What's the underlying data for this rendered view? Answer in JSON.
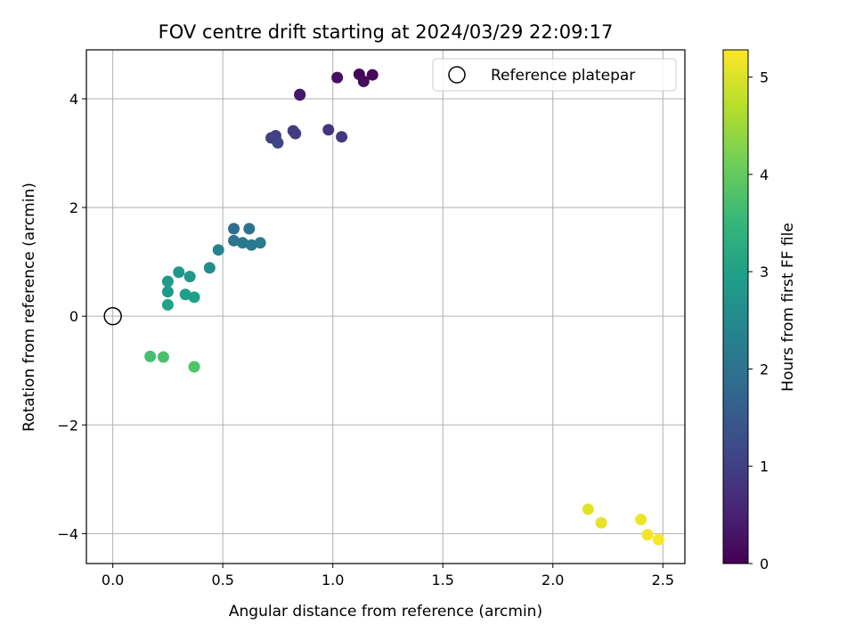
{
  "chart_data": {
    "type": "scatter",
    "title": "FOV centre drift starting at 2024/03/29 22:09:17",
    "xlabel": "Angular distance from reference (arcmin)",
    "ylabel": "Rotation from reference (arcmin)",
    "xlim": [
      -0.12,
      2.6
    ],
    "ylim": [
      -4.55,
      4.9
    ],
    "xticks": [
      0.0,
      0.5,
      1.0,
      1.5,
      2.0,
      2.5
    ],
    "xtick_labels": [
      "0.0",
      "0.5",
      "1.0",
      "1.5",
      "2.0",
      "2.5"
    ],
    "yticks": [
      -4,
      -2,
      0,
      2,
      4
    ],
    "ytick_labels": [
      "−4",
      "−2",
      "0",
      "2",
      "4"
    ],
    "grid": true,
    "legend": {
      "placement": "top-right",
      "entries": [
        {
          "label": "Reference platepar",
          "marker": "open-circle"
        }
      ]
    },
    "reference_point": {
      "x": 0.0,
      "y": 0.0
    },
    "colorbar": {
      "label": "Hours from first FF file",
      "range": [
        0,
        5.28
      ],
      "ticks": [
        0,
        1,
        2,
        3,
        4,
        5
      ],
      "tick_labels": [
        "0",
        "1",
        "2",
        "3",
        "4",
        "5"
      ],
      "colormap": "viridis",
      "stops": [
        "#440154",
        "#482878",
        "#3e4989",
        "#31688e",
        "#26828e",
        "#1f9e89",
        "#35b779",
        "#6ece58",
        "#b5de2b",
        "#fde725"
      ]
    },
    "points": [
      {
        "x": 1.12,
        "y": 4.45,
        "c": 0.05
      },
      {
        "x": 1.18,
        "y": 4.44,
        "c": 0.1
      },
      {
        "x": 1.14,
        "y": 4.32,
        "c": 0.15
      },
      {
        "x": 1.02,
        "y": 4.39,
        "c": 0.2
      },
      {
        "x": 0.85,
        "y": 4.08,
        "c": 0.3
      },
      {
        "x": 0.85,
        "y": 4.07,
        "c": 0.35
      },
      {
        "x": 0.98,
        "y": 3.43,
        "c": 0.8
      },
      {
        "x": 1.04,
        "y": 3.3,
        "c": 0.85
      },
      {
        "x": 0.82,
        "y": 3.41,
        "c": 0.9
      },
      {
        "x": 0.83,
        "y": 3.36,
        "c": 0.95
      },
      {
        "x": 0.72,
        "y": 3.28,
        "c": 1.0
      },
      {
        "x": 0.74,
        "y": 3.32,
        "c": 1.05
      },
      {
        "x": 0.75,
        "y": 3.19,
        "c": 1.1
      },
      {
        "x": 0.55,
        "y": 1.61,
        "c": 1.9
      },
      {
        "x": 0.62,
        "y": 1.61,
        "c": 2.0
      },
      {
        "x": 0.55,
        "y": 1.39,
        "c": 2.05
      },
      {
        "x": 0.59,
        "y": 1.35,
        "c": 2.1
      },
      {
        "x": 0.63,
        "y": 1.31,
        "c": 2.15
      },
      {
        "x": 0.67,
        "y": 1.35,
        "c": 2.2
      },
      {
        "x": 0.48,
        "y": 1.22,
        "c": 2.4
      },
      {
        "x": 0.44,
        "y": 0.89,
        "c": 2.55
      },
      {
        "x": 0.3,
        "y": 0.81,
        "c": 2.75
      },
      {
        "x": 0.35,
        "y": 0.73,
        "c": 2.8
      },
      {
        "x": 0.25,
        "y": 0.64,
        "c": 2.85
      },
      {
        "x": 0.25,
        "y": 0.45,
        "c": 2.9
      },
      {
        "x": 0.33,
        "y": 0.4,
        "c": 2.95
      },
      {
        "x": 0.37,
        "y": 0.35,
        "c": 3.0
      },
      {
        "x": 0.25,
        "y": 0.21,
        "c": 3.05
      },
      {
        "x": 0.17,
        "y": -0.74,
        "c": 3.7
      },
      {
        "x": 0.23,
        "y": -0.75,
        "c": 3.75
      },
      {
        "x": 0.37,
        "y": -0.93,
        "c": 3.8
      },
      {
        "x": 2.16,
        "y": -3.55,
        "c": 5.05
      },
      {
        "x": 2.22,
        "y": -3.8,
        "c": 5.1
      },
      {
        "x": 2.4,
        "y": -3.74,
        "c": 5.15
      },
      {
        "x": 2.43,
        "y": -4.02,
        "c": 5.2
      },
      {
        "x": 2.48,
        "y": -4.11,
        "c": 5.25
      }
    ]
  }
}
